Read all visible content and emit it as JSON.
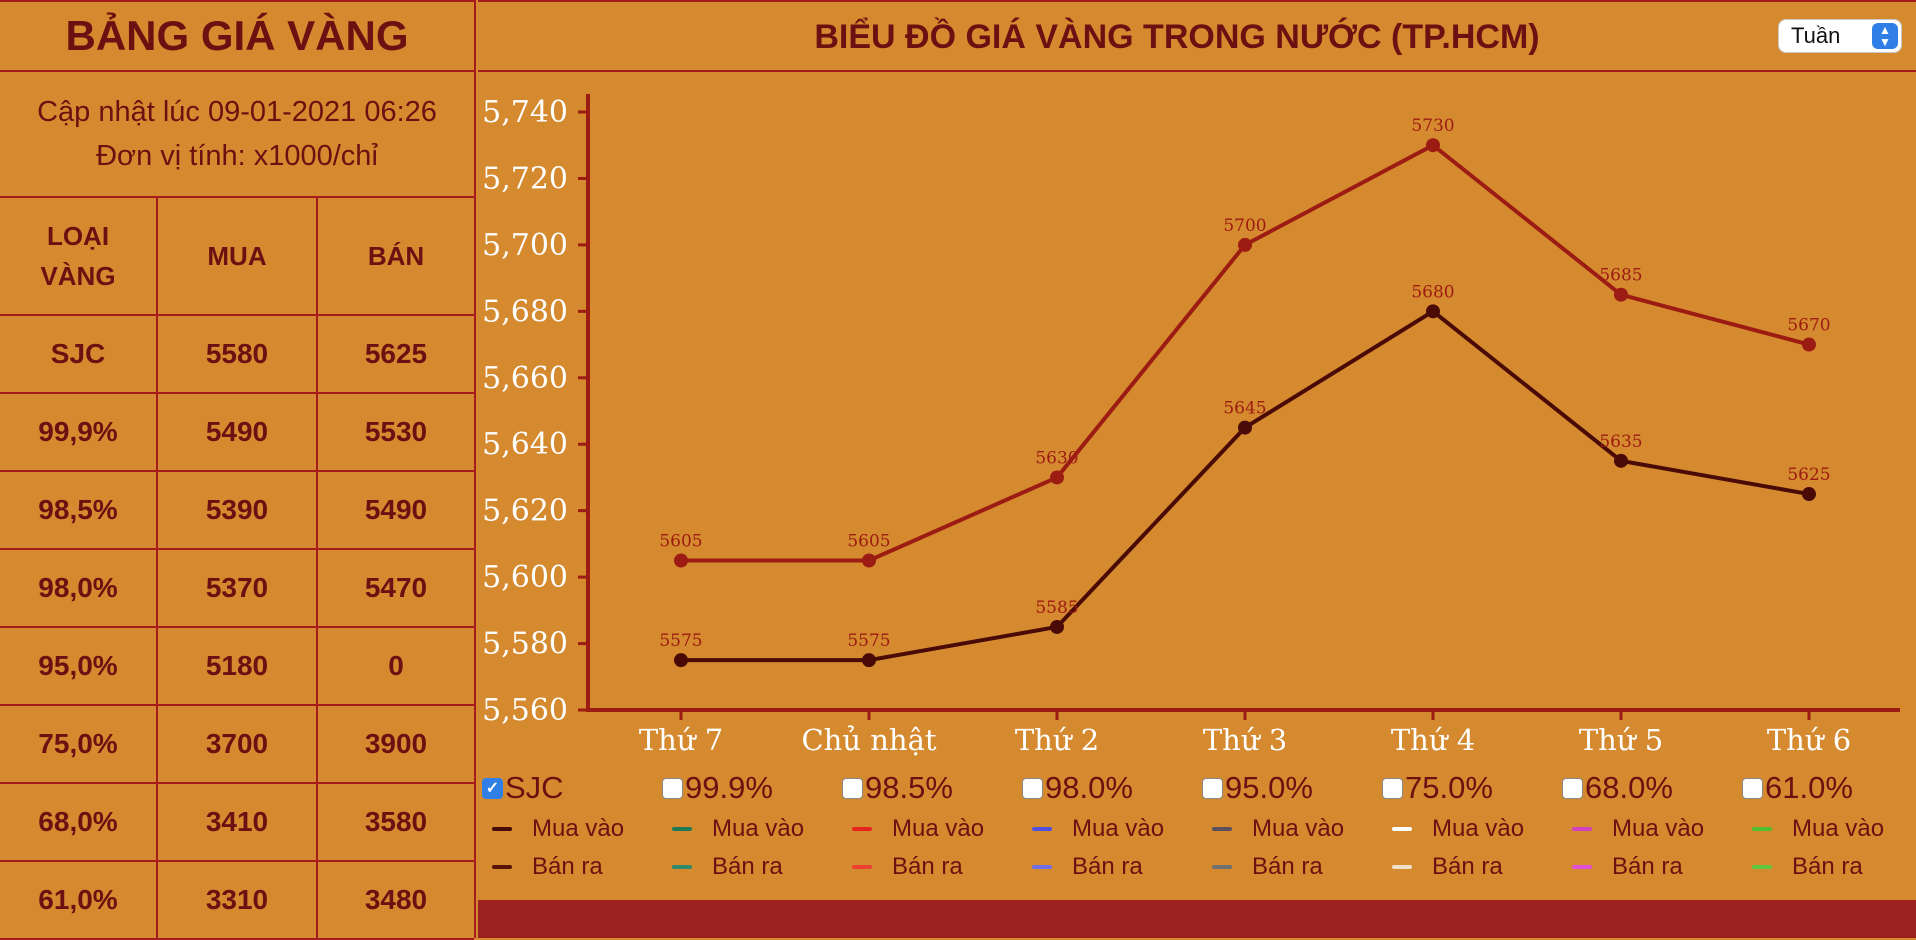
{
  "left_panel": {
    "title": "BẢNG GIÁ VÀNG",
    "updated": "Cập nhật lúc 09-01-2021 06:26",
    "unit": "Đơn vị tính: x1000/chỉ",
    "headers": [
      "LOẠI VÀNG",
      "MUA",
      "BÁN"
    ],
    "rows": [
      [
        "SJC",
        "5580",
        "5625"
      ],
      [
        "99,9%",
        "5490",
        "5530"
      ],
      [
        "98,5%",
        "5390",
        "5490"
      ],
      [
        "98,0%",
        "5370",
        "5470"
      ],
      [
        "95,0%",
        "5180",
        "0"
      ],
      [
        "75,0%",
        "3700",
        "3900"
      ],
      [
        "68,0%",
        "3410",
        "3580"
      ],
      [
        "61,0%",
        "3310",
        "3480"
      ]
    ]
  },
  "chart_header": {
    "title": "BIỂU ĐỒ GIÁ VÀNG TRONG NƯỚC (TP.HCM)",
    "period_select": "Tuần"
  },
  "chart_data": {
    "type": "line",
    "categories": [
      "Thứ 7",
      "Chủ nhật",
      "Thứ 2",
      "Thứ 3",
      "Thứ 4",
      "Thứ 5",
      "Thứ 6"
    ],
    "ylim": [
      5560,
      5740
    ],
    "yticks": [
      "5,560",
      "5,580",
      "5,600",
      "5,620",
      "5,640",
      "5,660",
      "5,680",
      "5,700",
      "5,720",
      "5,740"
    ],
    "series": [
      {
        "name": "Bán ra",
        "color": "#9c1b12",
        "values": [
          5605,
          5605,
          5630,
          5700,
          5730,
          5685,
          5670
        ]
      },
      {
        "name": "Mua vào",
        "color": "#4a0a05",
        "values": [
          5575,
          5575,
          5585,
          5645,
          5680,
          5635,
          5625
        ]
      }
    ]
  },
  "legend": {
    "buy_label": "Mua vào",
    "sell_label": "Bán ra",
    "groups": [
      {
        "label": "SJC",
        "checked": true,
        "buy_color": "#4a0a05",
        "sell_color": "#5a1405"
      },
      {
        "label": "99.9%",
        "checked": false,
        "buy_color": "#1f7a5a",
        "sell_color": "#2e8a6a"
      },
      {
        "label": "98.5%",
        "checked": false,
        "buy_color": "#e8251c",
        "sell_color": "#ee4030"
      },
      {
        "label": "98.0%",
        "checked": false,
        "buy_color": "#5050e0",
        "sell_color": "#7070e8"
      },
      {
        "label": "95.0%",
        "checked": false,
        "buy_color": "#5a5060",
        "sell_color": "#707070"
      },
      {
        "label": "75.0%",
        "checked": false,
        "buy_color": "#ffffff",
        "sell_color": "#f0e0c8"
      },
      {
        "label": "68.0%",
        "checked": false,
        "buy_color": "#d040c0",
        "sell_color": "#e050d8"
      },
      {
        "label": "61.0%",
        "checked": false,
        "buy_color": "#50c030",
        "sell_color": "#60c840"
      }
    ]
  }
}
